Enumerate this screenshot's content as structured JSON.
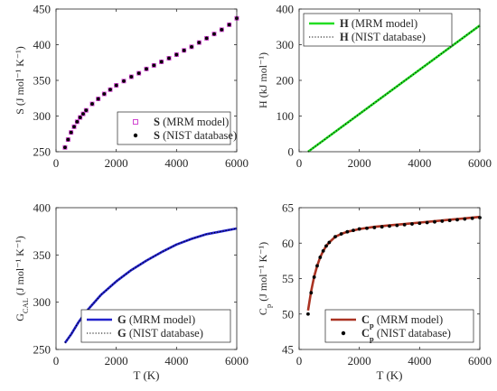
{
  "chart_data": [
    {
      "type": "line",
      "ylabel": "S (J mol⁻¹ K⁻¹)",
      "xlabel": "",
      "xlim": [
        0,
        6000
      ],
      "ylim": [
        250,
        450
      ],
      "xticks": [
        "0",
        "2000",
        "4000",
        "6000"
      ],
      "yticks": [
        "250",
        "300",
        "350",
        "400",
        "450"
      ],
      "legend_position": "bottom-right",
      "series": [
        {
          "name": "S",
          "legend_label": "S (MRM model)",
          "style": "square-markers",
          "color": "#cc33cc",
          "x": [
            298,
            400,
            500,
            600,
            700,
            800,
            900,
            1000,
            1200,
            1400,
            1600,
            1800,
            2000,
            2250,
            2500,
            2750,
            3000,
            3250,
            3500,
            3750,
            4000,
            4250,
            4500,
            4750,
            5000,
            5250,
            5500,
            5750,
            6000
          ],
          "y": [
            256,
            267,
            277,
            285,
            292,
            298,
            303,
            308,
            317,
            324,
            331,
            337,
            343,
            349,
            355,
            360,
            366,
            371,
            376,
            381,
            386,
            392,
            397,
            403,
            409,
            415,
            421,
            428,
            437
          ]
        },
        {
          "name": "S",
          "legend_label": "S (NIST database)",
          "style": "dot-markers",
          "color": "#000000",
          "x": [
            298,
            400,
            500,
            600,
            700,
            800,
            900,
            1000,
            1200,
            1400,
            1600,
            1800,
            2000,
            2250,
            2500,
            2750,
            3000,
            3250,
            3500,
            3750,
            4000,
            4250,
            4500,
            4750,
            5000,
            5250,
            5500,
            5750,
            6000
          ],
          "y": [
            256,
            267,
            277,
            285,
            292,
            298,
            303,
            308,
            317,
            324,
            331,
            337,
            343,
            349,
            355,
            360,
            366,
            371,
            376,
            381,
            386,
            392,
            397,
            403,
            409,
            415,
            421,
            428,
            437
          ]
        }
      ]
    },
    {
      "type": "line",
      "ylabel": "H (kJ mol⁻¹)",
      "xlabel": "",
      "xlim": [
        0,
        6000
      ],
      "ylim": [
        0,
        400
      ],
      "xticks": [
        "0",
        "2000",
        "4000",
        "6000"
      ],
      "yticks": [
        "0",
        "100",
        "200",
        "300",
        "400"
      ],
      "legend_position": "top-left",
      "series": [
        {
          "name": "H",
          "legend_label": "H (MRM model)",
          "style": "solid",
          "color": "#22dd22",
          "x": [
            298,
            6000
          ],
          "y": [
            0,
            354
          ]
        },
        {
          "name": "H",
          "legend_label": "H (NIST database)",
          "style": "dotted",
          "color": "#000000",
          "x": [
            298,
            6000
          ],
          "y": [
            0,
            354
          ]
        }
      ]
    },
    {
      "type": "line",
      "ylabel": "G_CAL (J mol⁻¹ K⁻¹)",
      "xlabel": "T (K)",
      "xlim": [
        0,
        6000
      ],
      "ylim": [
        250,
        400
      ],
      "xticks": [
        "0",
        "2000",
        "4000",
        "6000"
      ],
      "yticks": [
        "250",
        "300",
        "350",
        "400"
      ],
      "legend_position": "bottom-right",
      "series": [
        {
          "name": "G",
          "legend_label": "G (MRM model)",
          "style": "solid",
          "color": "#2222cc",
          "x": [
            298,
            500,
            750,
            1000,
            1500,
            2000,
            2500,
            3000,
            3500,
            4000,
            4500,
            5000,
            5500,
            6000
          ],
          "y": [
            257,
            266,
            279,
            290,
            308,
            322,
            334,
            344,
            353,
            361,
            367,
            372,
            375,
            378
          ]
        },
        {
          "name": "G",
          "legend_label": "G (NIST database)",
          "style": "dotted",
          "color": "#000000",
          "x": [
            298,
            500,
            750,
            1000,
            1500,
            2000,
            2500,
            3000,
            3500,
            4000,
            4500,
            5000,
            5500,
            6000
          ],
          "y": [
            257,
            266,
            279,
            290,
            308,
            322,
            334,
            344,
            353,
            361,
            367,
            372,
            375,
            378
          ]
        }
      ]
    },
    {
      "type": "line",
      "ylabel": "C_p (J mol⁻¹ K⁻¹)",
      "xlabel": "T (K)",
      "xlim": [
        0,
        6000
      ],
      "ylim": [
        45,
        65
      ],
      "xticks": [
        "0",
        "2000",
        "4000",
        "6000"
      ],
      "yticks": [
        "45",
        "50",
        "55",
        "60",
        "65"
      ],
      "legend_position": "bottom-right",
      "series": [
        {
          "name": "C_p",
          "legend_label": "C_p (MRM model)",
          "style": "solid",
          "color": "#aa3322",
          "x": [
            298,
            400,
            500,
            600,
            700,
            800,
            900,
            1000,
            1200,
            1400,
            1600,
            2000,
            2500,
            3000,
            3500,
            4000,
            4500,
            5000,
            5500,
            6000
          ],
          "y": [
            50.5,
            53.2,
            55.3,
            56.8,
            58.0,
            58.9,
            59.6,
            60.1,
            60.9,
            61.3,
            61.6,
            62.0,
            62.3,
            62.5,
            62.7,
            62.9,
            63.1,
            63.3,
            63.5,
            63.7
          ]
        },
        {
          "name": "C_p",
          "legend_label": "C_p (NIST database)",
          "style": "dot-markers",
          "color": "#000000",
          "x": [
            298,
            400,
            500,
            600,
            700,
            800,
            900,
            1000,
            1200,
            1400,
            1600,
            1800,
            2000,
            2250,
            2500,
            2750,
            3000,
            3250,
            3500,
            3750,
            4000,
            4250,
            4500,
            4750,
            5000,
            5250,
            5500,
            5750,
            6000
          ],
          "y": [
            50.0,
            53.0,
            55.2,
            56.8,
            58.0,
            58.9,
            59.6,
            60.1,
            60.9,
            61.3,
            61.6,
            61.8,
            62.0,
            62.1,
            62.2,
            62.3,
            62.4,
            62.5,
            62.6,
            62.7,
            62.8,
            62.9,
            63.0,
            63.1,
            63.2,
            63.3,
            63.4,
            63.5,
            63.6
          ]
        }
      ]
    }
  ]
}
